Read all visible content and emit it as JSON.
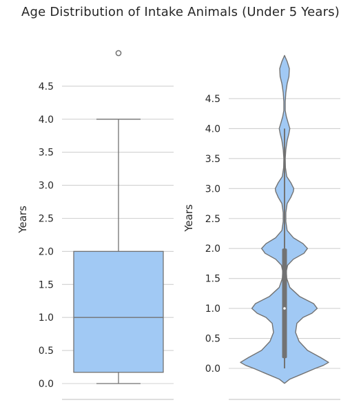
{
  "title": "Age Distribution of Intake Animals (Under 5 Years)",
  "colors": {
    "fill": "#a1c9f4",
    "line": "#727272",
    "grid": "#d0d0d0",
    "spine": "#cccccc",
    "text": "#262626"
  },
  "chart_data": [
    {
      "type": "box",
      "ylabel": "Years",
      "ylim": [
        -0.2,
        5.1
      ],
      "yticks": [
        "0.0",
        "0.5",
        "1.0",
        "1.5",
        "2.0",
        "2.5",
        "3.0",
        "3.5",
        "4.0",
        "4.5"
      ],
      "grid": true,
      "box": {
        "whisker_low": 0.0,
        "q1": 0.17,
        "median": 1.0,
        "q3": 2.0,
        "whisker_high": 4.0
      },
      "outliers": [
        5.0
      ]
    },
    {
      "type": "violin",
      "ylabel": "Years",
      "ylim": [
        -0.3,
        5.2
      ],
      "yticks": [
        "0.0",
        "0.5",
        "1.0",
        "1.5",
        "2.0",
        "2.5",
        "3.0",
        "3.5",
        "4.0",
        "4.5"
      ],
      "grid": true,
      "density": [
        [
          -0.25,
          0.0
        ],
        [
          -0.18,
          0.12
        ],
        [
          -0.1,
          0.38
        ],
        [
          0.0,
          0.7
        ],
        [
          0.05,
          0.88
        ],
        [
          0.1,
          1.0
        ],
        [
          0.18,
          0.82
        ],
        [
          0.3,
          0.52
        ],
        [
          0.45,
          0.33
        ],
        [
          0.6,
          0.25
        ],
        [
          0.75,
          0.28
        ],
        [
          0.85,
          0.42
        ],
        [
          0.92,
          0.62
        ],
        [
          1.0,
          0.74
        ],
        [
          1.08,
          0.66
        ],
        [
          1.2,
          0.34
        ],
        [
          1.35,
          0.12
        ],
        [
          1.5,
          0.05
        ],
        [
          1.62,
          0.04
        ],
        [
          1.72,
          0.07
        ],
        [
          1.82,
          0.2
        ],
        [
          1.92,
          0.44
        ],
        [
          2.0,
          0.52
        ],
        [
          2.08,
          0.42
        ],
        [
          2.18,
          0.2
        ],
        [
          2.3,
          0.06
        ],
        [
          2.45,
          0.03
        ],
        [
          2.6,
          0.03
        ],
        [
          2.75,
          0.06
        ],
        [
          2.85,
          0.14
        ],
        [
          2.95,
          0.2
        ],
        [
          3.0,
          0.21
        ],
        [
          3.1,
          0.14
        ],
        [
          3.2,
          0.05
        ],
        [
          3.35,
          0.02
        ],
        [
          3.5,
          0.015
        ],
        [
          3.65,
          0.03
        ],
        [
          3.8,
          0.06
        ],
        [
          3.92,
          0.1
        ],
        [
          4.0,
          0.12
        ],
        [
          4.1,
          0.08
        ],
        [
          4.2,
          0.04
        ],
        [
          4.3,
          0.015
        ],
        [
          4.45,
          0.015
        ],
        [
          4.6,
          0.03
        ],
        [
          4.75,
          0.06
        ],
        [
          4.87,
          0.1
        ],
        [
          5.0,
          0.11
        ],
        [
          5.12,
          0.06
        ],
        [
          5.22,
          0.0
        ]
      ],
      "inner_box": {
        "q1": 0.17,
        "median": 1.0,
        "q3": 2.0,
        "whisker_low": 0.0,
        "whisker_high": 4.0
      }
    }
  ]
}
